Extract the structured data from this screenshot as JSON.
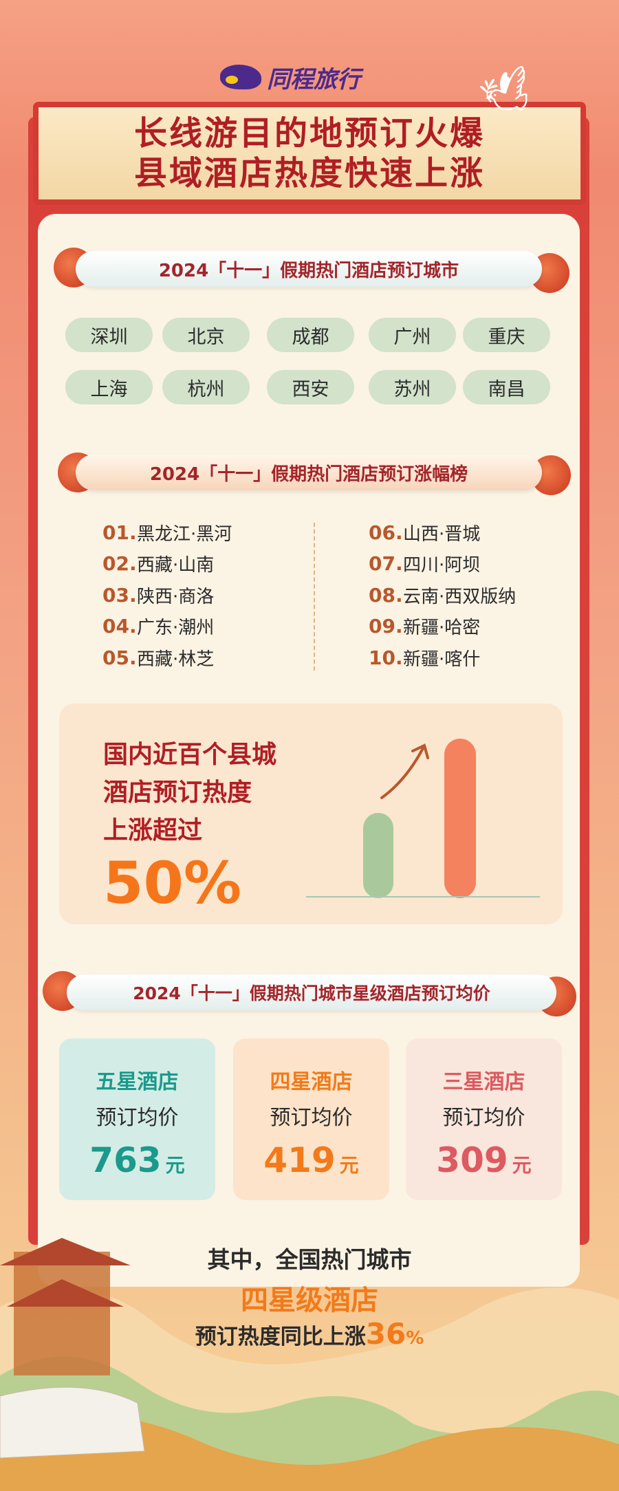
{
  "brand": {
    "name": "同程旅行",
    "logo_color": "#4b2a8c"
  },
  "headline": {
    "line1": "长线游目的地预订火爆",
    "line2": "县域酒店热度快速上涨"
  },
  "section_cities": {
    "title": "2024「十一」假期热门酒店预订城市",
    "cities": [
      "深圳",
      "北京",
      "成都",
      "广州",
      "重庆",
      "上海",
      "杭州",
      "西安",
      "苏州",
      "南昌"
    ]
  },
  "section_ranking": {
    "title": "2024「十一」假期热门酒店预订涨幅榜",
    "items": [
      {
        "rank": "01.",
        "place": "黑龙江·黑河"
      },
      {
        "rank": "02.",
        "place": "西藏·山南"
      },
      {
        "rank": "03.",
        "place": "陕西·商洛"
      },
      {
        "rank": "04.",
        "place": "广东·潮州"
      },
      {
        "rank": "05.",
        "place": "西藏·林芝"
      },
      {
        "rank": "06.",
        "place": "山西·晋城"
      },
      {
        "rank": "07.",
        "place": "四川·阿坝"
      },
      {
        "rank": "08.",
        "place": "云南·西双版纳"
      },
      {
        "rank": "09.",
        "place": "新疆·哈密"
      },
      {
        "rank": "10.",
        "place": "新疆·喀什"
      }
    ]
  },
  "stat": {
    "line1": "国内近百个县城",
    "line2": "酒店预订热度",
    "line3": "上涨超过",
    "value": "50%",
    "bar_colors": [
      "#a9c99c",
      "#f5825e"
    ]
  },
  "section_prices": {
    "title": "2024「十一」假期热门城市星级酒店预订均价",
    "cards": [
      {
        "title": "五星酒店",
        "subtitle": "预订均价",
        "value": "763",
        "unit": "元",
        "color": "#1a9a8c",
        "bg": "#d4ece6"
      },
      {
        "title": "四星酒店",
        "subtitle": "预订均价",
        "value": "419",
        "unit": "元",
        "color": "#f27a1a",
        "bg": "#fce3c9"
      },
      {
        "title": "三星酒店",
        "subtitle": "预订均价",
        "value": "309",
        "unit": "元",
        "color": "#dc5a60",
        "bg": "#f9e6dc"
      }
    ]
  },
  "footer": {
    "line1": "其中，全国热门城市",
    "line2": "四星级酒店",
    "line3_prefix": "预订热度同比上涨",
    "line3_value": "36",
    "line3_unit": "%"
  }
}
